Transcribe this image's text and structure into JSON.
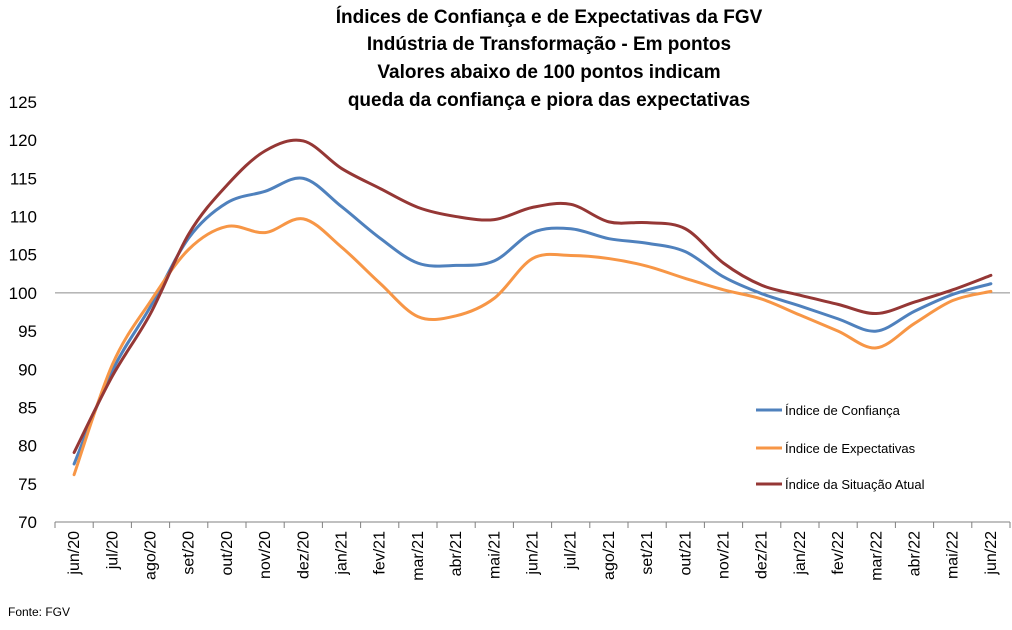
{
  "chart_data": {
    "type": "line",
    "title_lines": [
      "Índices de Confiança e de Expectativas da FGV",
      "Indústria de Transformação - Em pontos",
      "Valores abaixo de 100 pontos indicam",
      "queda da confiança e piora das expectativas"
    ],
    "categories": [
      "jun/20",
      "jul/20",
      "ago/20",
      "set/20",
      "out/20",
      "nov/20",
      "dez/20",
      "jan/21",
      "fev/21",
      "mar/21",
      "abr/21",
      "mai/21",
      "jun/21",
      "jul/21",
      "ago/21",
      "set/21",
      "out/21",
      "nov/21",
      "dez/21",
      "jan/22",
      "fev/22",
      "mar/22",
      "abr/22",
      "mai/22",
      "jun/22"
    ],
    "ylim": [
      70,
      125
    ],
    "yticks": [
      70,
      75,
      80,
      85,
      90,
      95,
      100,
      105,
      110,
      115,
      120,
      125
    ],
    "reference_line": 100,
    "grid": false,
    "legend_position": "right",
    "series": [
      {
        "name": "Índice de Confiança",
        "color": "#4F81BD",
        "values": [
          77.6,
          89.8,
          98.2,
          107.2,
          111.8,
          113.3,
          115.0,
          111.3,
          107.2,
          103.9,
          103.6,
          104.2,
          107.9,
          108.4,
          107.1,
          106.5,
          105.4,
          102.1,
          99.9,
          98.3,
          96.6,
          95.0,
          97.6,
          99.8,
          101.2
        ]
      },
      {
        "name": "Índice de Expectativas",
        "color": "#F79646",
        "values": [
          76.2,
          90.6,
          98.9,
          105.7,
          108.7,
          107.9,
          109.7,
          106.0,
          101.3,
          96.9,
          97.0,
          99.3,
          104.5,
          104.9,
          104.5,
          103.5,
          101.9,
          100.4,
          99.2,
          97.1,
          95.0,
          92.8,
          96.0,
          99.0,
          100.2
        ]
      },
      {
        "name": "Índice da Situação Atual",
        "color": "#953735",
        "values": [
          79.1,
          89.1,
          97.3,
          107.7,
          114.1,
          118.6,
          119.9,
          116.3,
          113.7,
          111.2,
          110.0,
          109.6,
          111.2,
          111.6,
          109.3,
          109.2,
          108.4,
          103.9,
          101.0,
          99.7,
          98.5,
          97.3,
          98.8,
          100.4,
          102.3
        ]
      }
    ]
  },
  "source": "Fonte: FGV"
}
